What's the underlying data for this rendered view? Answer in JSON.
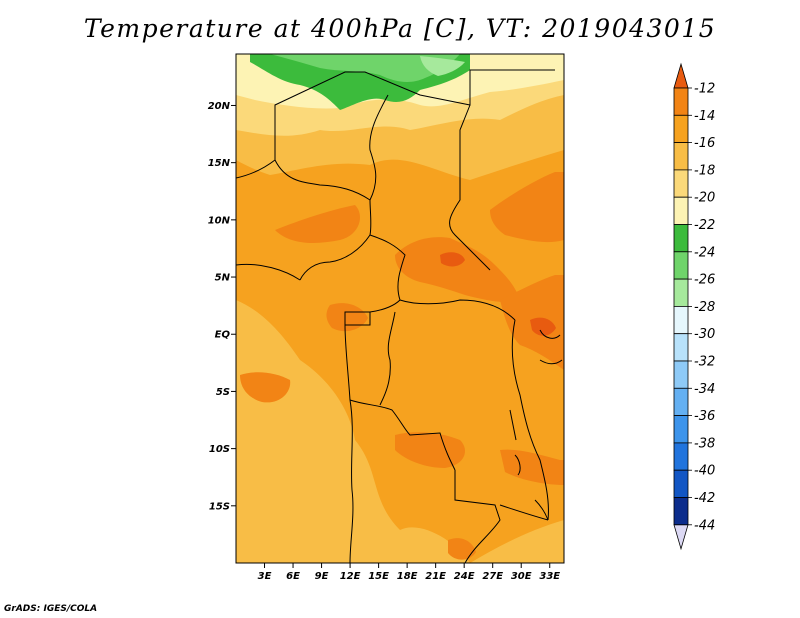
{
  "title": "Temperature at 400hPa [C], VT: 2019043015",
  "credit": "GrADS: IGES/COLA",
  "map": {
    "lon_range": [
      0,
      34.5
    ],
    "lat_range": [
      -20,
      24.5
    ],
    "lat_labels": [
      {
        "value": 20,
        "text": "20N"
      },
      {
        "value": 15,
        "text": "15N"
      },
      {
        "value": 10,
        "text": "10N"
      },
      {
        "value": 5,
        "text": "5N"
      },
      {
        "value": 0,
        "text": "EQ"
      },
      {
        "value": -5,
        "text": "5S"
      },
      {
        "value": -10,
        "text": "10S"
      },
      {
        "value": -15,
        "text": "15S"
      }
    ],
    "lon_labels": [
      {
        "value": 3,
        "text": "3E"
      },
      {
        "value": 6,
        "text": "6E"
      },
      {
        "value": 9,
        "text": "9E"
      },
      {
        "value": 12,
        "text": "12E"
      },
      {
        "value": 15,
        "text": "15E"
      },
      {
        "value": 18,
        "text": "18E"
      },
      {
        "value": 21,
        "text": "21E"
      },
      {
        "value": 24,
        "text": "24E"
      },
      {
        "value": 27,
        "text": "27E"
      },
      {
        "value": 30,
        "text": "30E"
      },
      {
        "value": 33,
        "text": "33E"
      }
    ]
  },
  "colorbar": {
    "labels": [
      "-12",
      "-14",
      "-16",
      "-18",
      "-20",
      "-22",
      "-24",
      "-26",
      "-28",
      "-30",
      "-32",
      "-34",
      "-36",
      "-38",
      "-40",
      "-42",
      "-44"
    ],
    "colors": [
      "#e85b10",
      "#f28415",
      "#f6a21f",
      "#f8bd46",
      "#fbd97a",
      "#fdf3b4",
      "#3cbb3c",
      "#6fd46a",
      "#a6e99c",
      "#e6f7fd",
      "#b8e2fb",
      "#8ecaf7",
      "#64b0f2",
      "#3d94eb",
      "#2174dd",
      "#1256c4",
      "#0c2d8c",
      "#dcd9f4"
    ]
  },
  "chart_data": {
    "type": "heatmap",
    "title": "Temperature at 400hPa [C], VT: 2019043015",
    "units": "C",
    "valid_time": "2019043015",
    "x_range": [
      0,
      34.5
    ],
    "y_range": [
      -20,
      24.5
    ],
    "levels": [
      -12,
      -14,
      -16,
      -18,
      -20,
      -22,
      -24,
      -26,
      -28,
      -30,
      -32,
      -34,
      -36,
      -38,
      -40,
      -42,
      -44
    ],
    "regions": [
      {
        "area": "north near 22-24N",
        "range": "-22 to -26"
      },
      {
        "area": "about 17-21N",
        "range": "-18 to -20"
      },
      {
        "area": "most of domain",
        "range": "-14 to -16"
      },
      {
        "area": "patches near 3-8N and near 1S-10S east",
        "range": "-12 to -14"
      }
    ]
  }
}
